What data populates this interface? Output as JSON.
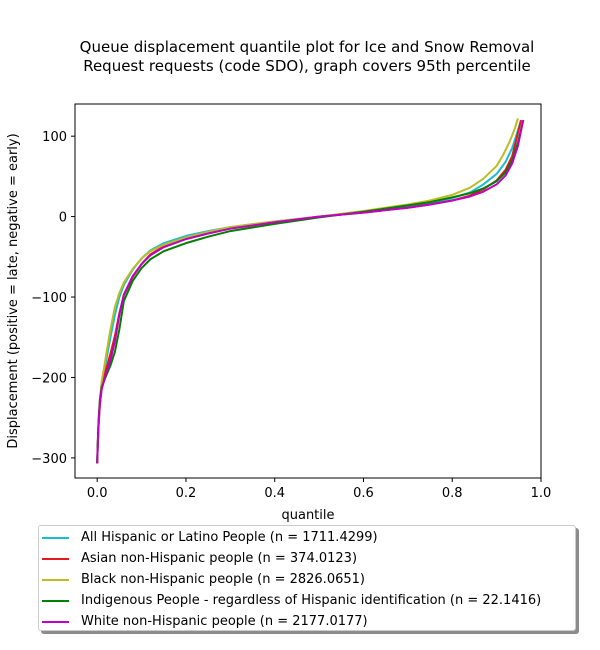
{
  "chart_data": {
    "type": "line",
    "title": "Queue displacement quantile plot for Ice and Snow Removal\nRequest  requests (code SDO), graph covers 95th percentile",
    "title_lines": [
      "Queue displacement quantile plot for Ice and Snow Removal",
      "Request  requests (code SDO), graph covers 95th percentile"
    ],
    "xlabel": "quantile",
    "ylabel": "Displacement (positive = late, negative = early)",
    "xlim": [
      -0.05,
      1.0
    ],
    "ylim": [
      -325,
      140
    ],
    "xticks": [
      0.0,
      0.2,
      0.4,
      0.6,
      0.8,
      1.0
    ],
    "xtick_labels": [
      "0.0",
      "0.2",
      "0.4",
      "0.6",
      "0.8",
      "1.0"
    ],
    "yticks": [
      -300,
      -200,
      -100,
      0,
      100
    ],
    "ytick_labels": [
      "−300",
      "−200",
      "−100",
      "0",
      "100"
    ],
    "grid": false,
    "legend_position": "below",
    "series": [
      {
        "name": "All Hispanic or Latino People (n = 1711.4299)",
        "color": "#17becf",
        "x": [
          0.0,
          0.001,
          0.003,
          0.006,
          0.01,
          0.015,
          0.02,
          0.03,
          0.04,
          0.05,
          0.06,
          0.08,
          0.1,
          0.12,
          0.15,
          0.2,
          0.25,
          0.3,
          0.4,
          0.5,
          0.6,
          0.7,
          0.75,
          0.8,
          0.84,
          0.87,
          0.9,
          0.92,
          0.935,
          0.945,
          0.955
        ],
        "y": [
          -307,
          -290,
          -260,
          -232,
          -210,
          -195,
          -180,
          -150,
          -122,
          -100,
          -85,
          -66,
          -52,
          -42,
          -33,
          -24,
          -18,
          -13,
          -6,
          0,
          6,
          13,
          17,
          23,
          30,
          40,
          53,
          68,
          85,
          102,
          120
        ]
      },
      {
        "name": "Asian non-Hispanic people (n = 374.0123)",
        "color": "#e31a1c",
        "x": [
          0.0,
          0.001,
          0.003,
          0.006,
          0.01,
          0.015,
          0.02,
          0.03,
          0.04,
          0.05,
          0.06,
          0.08,
          0.1,
          0.12,
          0.15,
          0.2,
          0.25,
          0.3,
          0.4,
          0.5,
          0.6,
          0.7,
          0.75,
          0.8,
          0.84,
          0.87,
          0.9,
          0.92,
          0.935,
          0.945,
          0.955
        ],
        "y": [
          -307,
          -290,
          -262,
          -235,
          -213,
          -200,
          -190,
          -170,
          -148,
          -120,
          -98,
          -75,
          -59,
          -47,
          -37,
          -27,
          -20,
          -14,
          -7,
          0,
          5,
          11,
          15,
          20,
          26,
          34,
          45,
          58,
          75,
          97,
          120
        ]
      },
      {
        "name": "Black non-Hispanic people (n = 2826.0651)",
        "color": "#bcbd22",
        "x": [
          0.0,
          0.001,
          0.003,
          0.006,
          0.01,
          0.015,
          0.02,
          0.03,
          0.04,
          0.05,
          0.06,
          0.08,
          0.1,
          0.12,
          0.15,
          0.2,
          0.25,
          0.3,
          0.4,
          0.5,
          0.6,
          0.7,
          0.75,
          0.8,
          0.84,
          0.87,
          0.9,
          0.915,
          0.93,
          0.94,
          0.948
        ],
        "y": [
          -307,
          -288,
          -258,
          -228,
          -205,
          -190,
          -172,
          -140,
          -112,
          -95,
          -82,
          -65,
          -52,
          -43,
          -35,
          -26,
          -19,
          -13,
          -6,
          0,
          7,
          15,
          20,
          27,
          36,
          47,
          63,
          77,
          94,
          108,
          122
        ]
      },
      {
        "name": "Indigenous People - regardless of Hispanic identification (n = 22.1416)",
        "color": "#008000",
        "x": [
          0.0,
          0.001,
          0.003,
          0.006,
          0.01,
          0.015,
          0.02,
          0.03,
          0.04,
          0.05,
          0.06,
          0.08,
          0.1,
          0.12,
          0.15,
          0.2,
          0.25,
          0.3,
          0.4,
          0.5,
          0.6,
          0.7,
          0.75,
          0.8,
          0.84,
          0.87,
          0.9,
          0.92,
          0.935,
          0.948,
          0.96
        ],
        "y": [
          -307,
          -285,
          -255,
          -228,
          -212,
          -205,
          -198,
          -185,
          -168,
          -140,
          -105,
          -80,
          -64,
          -53,
          -43,
          -33,
          -25,
          -18,
          -9,
          -1,
          6,
          14,
          18,
          24,
          29,
          35,
          44,
          55,
          70,
          92,
          120
        ]
      },
      {
        "name": "White non-Hispanic people (n = 2177.0177)",
        "color": "#c000c0",
        "x": [
          0.0,
          0.001,
          0.003,
          0.006,
          0.01,
          0.015,
          0.02,
          0.03,
          0.04,
          0.05,
          0.06,
          0.08,
          0.1,
          0.12,
          0.15,
          0.2,
          0.25,
          0.3,
          0.4,
          0.5,
          0.6,
          0.7,
          0.75,
          0.8,
          0.84,
          0.87,
          0.9,
          0.92,
          0.935,
          0.948,
          0.96
        ],
        "y": [
          -307,
          -288,
          -258,
          -232,
          -215,
          -205,
          -195,
          -178,
          -155,
          -122,
          -97,
          -74,
          -59,
          -48,
          -38,
          -28,
          -21,
          -15,
          -7,
          0,
          5,
          11,
          15,
          20,
          25,
          31,
          40,
          51,
          66,
          88,
          120
        ]
      }
    ]
  }
}
